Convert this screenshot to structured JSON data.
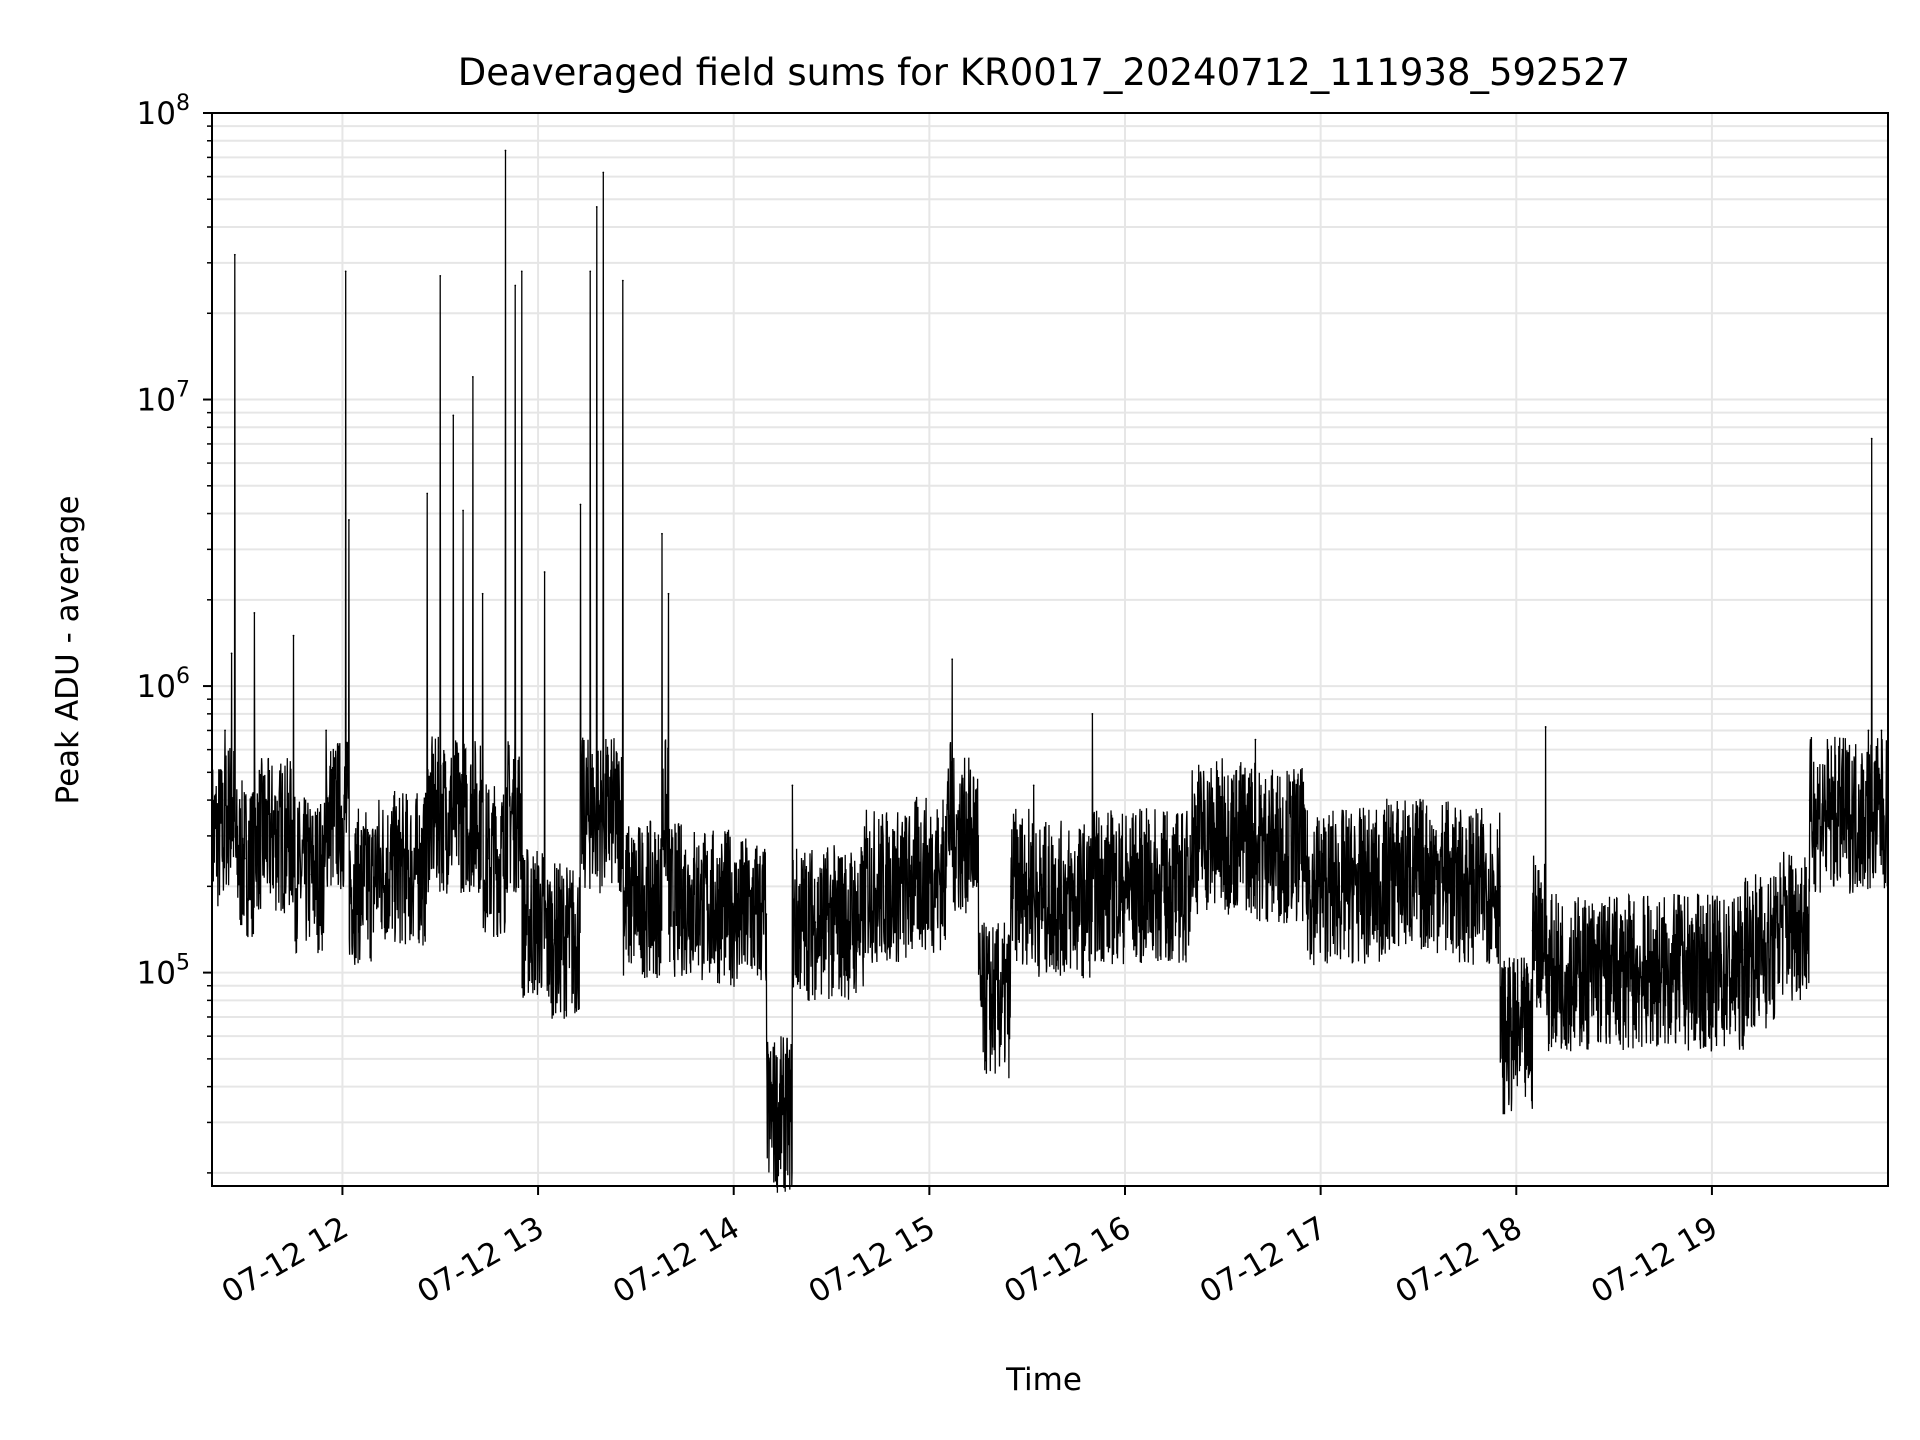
{
  "chart_data": {
    "type": "line",
    "title": "Deaveraged field sums for KR0017_20240712_111938_592527",
    "xlabel": "Time",
    "ylabel": "Peak ADU - average",
    "xlim": [
      "2024-07-12T11:20",
      "2024-07-12T19:54"
    ],
    "ylim": [
      18000,
      100000000
    ],
    "yscale": "log",
    "grid": true,
    "xticks": [
      {
        "value": "2024-07-12T12:00",
        "label": "07-12 12"
      },
      {
        "value": "2024-07-12T13:00",
        "label": "07-12 13"
      },
      {
        "value": "2024-07-12T14:00",
        "label": "07-12 14"
      },
      {
        "value": "2024-07-12T15:00",
        "label": "07-12 15"
      },
      {
        "value": "2024-07-12T16:00",
        "label": "07-12 16"
      },
      {
        "value": "2024-07-12T17:00",
        "label": "07-12 17"
      },
      {
        "value": "2024-07-12T18:00",
        "label": "07-12 18"
      },
      {
        "value": "2024-07-12T19:00",
        "label": "07-12 19"
      }
    ],
    "yticks": [
      {
        "value": 100000,
        "base": "10",
        "exp": "5"
      },
      {
        "value": 1000000,
        "base": "10",
        "exp": "6"
      },
      {
        "value": 10000000,
        "base": "10",
        "exp": "7"
      },
      {
        "value": 100000000,
        "base": "10",
        "exp": "8"
      }
    ],
    "series": [
      {
        "color": "#000000",
        "x": [
          "2024-07-12T11:20",
          "2024-07-12T11:24",
          "2024-07-12T11:26",
          "2024-07-12T11:27",
          "2024-07-12T11:30",
          "2024-07-12T11:33",
          "2024-07-12T11:38",
          "2024-07-12T11:45",
          "2024-07-12T11:50",
          "2024-07-12T11:55",
          "2024-07-12T12:01",
          "2024-07-12T12:02",
          "2024-07-12T12:04",
          "2024-07-12T12:10",
          "2024-07-12T12:20",
          "2024-07-12T12:26",
          "2024-07-12T12:30",
          "2024-07-12T12:34",
          "2024-07-12T12:37",
          "2024-07-12T12:40",
          "2024-07-12T12:43",
          "2024-07-12T12:45",
          "2024-07-12T12:50",
          "2024-07-12T12:53",
          "2024-07-12T12:55",
          "2024-07-12T13:00",
          "2024-07-12T13:02",
          "2024-07-12T13:05",
          "2024-07-12T13:13",
          "2024-07-12T13:16",
          "2024-07-12T13:18",
          "2024-07-12T13:20",
          "2024-07-12T13:26",
          "2024-07-12T13:30",
          "2024-07-12T13:38",
          "2024-07-12T13:40",
          "2024-07-12T13:50",
          "2024-07-12T14:00",
          "2024-07-12T14:10",
          "2024-07-12T14:15",
          "2024-07-12T14:18",
          "2024-07-12T14:25",
          "2024-07-12T14:40",
          "2024-07-12T14:55",
          "2024-07-12T15:05",
          "2024-07-12T15:07",
          "2024-07-12T15:15",
          "2024-07-12T15:20",
          "2024-07-12T15:25",
          "2024-07-12T15:32",
          "2024-07-12T15:45",
          "2024-07-12T15:50",
          "2024-07-12T16:00",
          "2024-07-12T16:20",
          "2024-07-12T16:40",
          "2024-07-12T16:55",
          "2024-07-12T17:05",
          "2024-07-12T17:20",
          "2024-07-12T17:40",
          "2024-07-12T17:55",
          "2024-07-12T17:58",
          "2024-07-12T18:05",
          "2024-07-12T18:09",
          "2024-07-12T18:20",
          "2024-07-12T18:40",
          "2024-07-12T19:00",
          "2024-07-12T19:10",
          "2024-07-12T19:20",
          "2024-07-12T19:30",
          "2024-07-12T19:40",
          "2024-07-12T19:48",
          "2024-07-12T19:49",
          "2024-07-12T19:52",
          "2024-07-12T19:54"
        ],
        "y": [
          300000,
          700000,
          1300000,
          32000000,
          250000,
          1800000,
          300000,
          1500000,
          220000,
          700000,
          28000000,
          3800000,
          200000,
          300000,
          230000,
          4700000,
          27000000,
          8800000,
          4100000,
          12000000,
          2100000,
          250000,
          74000000,
          25000000,
          28000000,
          150000,
          2500000,
          130000,
          4300000,
          28000000,
          47000000,
          62000000,
          26000000,
          180000,
          3400000,
          2100000,
          180000,
          170000,
          160000,
          32000,
          450000,
          150000,
          200000,
          220000,
          350000,
          1240000,
          300000,
          80000,
          200000,
          450000,
          180000,
          800000,
          200000,
          300000,
          650000,
          280000,
          200000,
          220000,
          250000,
          200000,
          60000,
          140000,
          720000,
          100000,
          110000,
          100000,
          120000,
          150000,
          400000,
          600000,
          700000,
          7300000,
          700000,
          500000
        ]
      }
    ]
  }
}
